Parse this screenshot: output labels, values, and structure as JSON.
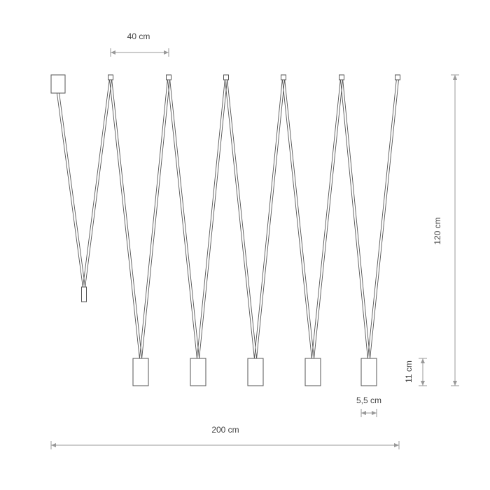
{
  "dimensions": {
    "spacing": "40 cm",
    "height": "120 cm",
    "pendant_height": "11 cm",
    "pendant_width": "5,5 cm",
    "total_width": "200 cm"
  },
  "colors": {
    "line": "#555555",
    "dimension": "#999999",
    "text": "#444444"
  }
}
